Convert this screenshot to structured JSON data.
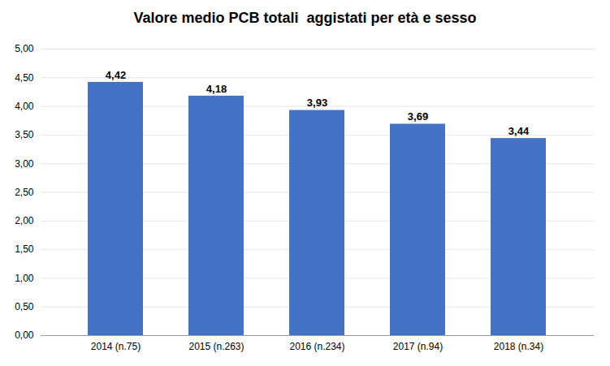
{
  "chart_data": {
    "type": "bar",
    "title": "Valore medio PCB totali  aggistati per età e sesso",
    "categories": [
      "2014 (n.75)",
      "2015 (n.263)",
      "2016 (n.234)",
      "2017 (n.94)",
      "2018 (n.34)"
    ],
    "values": [
      4.42,
      4.18,
      3.93,
      3.69,
      3.44
    ],
    "value_labels": [
      "4,42",
      "4,18",
      "3,93",
      "3,69",
      "3,44"
    ],
    "data_labels": true,
    "color": "#4472C4",
    "ylim": [
      0,
      5.0
    ],
    "yticks": [
      {
        "value": 0.0,
        "label": "0,00"
      },
      {
        "value": 0.5,
        "label": "0,50"
      },
      {
        "value": 1.0,
        "label": "1,00"
      },
      {
        "value": 1.5,
        "label": "1,50"
      },
      {
        "value": 2.0,
        "label": "2,00"
      },
      {
        "value": 2.5,
        "label": "2,50"
      },
      {
        "value": 3.0,
        "label": "3,00"
      },
      {
        "value": 3.5,
        "label": "3,50"
      },
      {
        "value": 4.0,
        "label": "4,00"
      },
      {
        "value": 4.5,
        "label": "4,50"
      },
      {
        "value": 5.0,
        "label": "5,00"
      }
    ],
    "grid": true
  }
}
